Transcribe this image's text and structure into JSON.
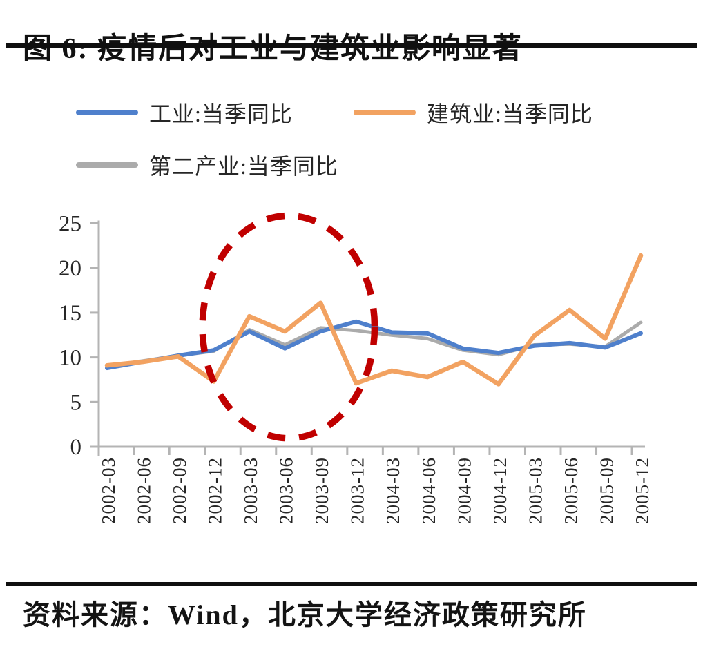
{
  "header": {
    "title": "图 6: 疫情后对工业与建筑业影响显著"
  },
  "legend": {
    "items": [
      {
        "label": "工业:当季同比"
      },
      {
        "label": "建筑业:当季同比"
      },
      {
        "label": "第二产业:当季同比"
      }
    ]
  },
  "footer": {
    "source": "资料来源：Wind，北京大学经济政策研究所"
  },
  "chart_data": {
    "type": "line",
    "title": "图 6: 疫情后对工业与建筑业影响显著",
    "xlabel": "",
    "ylabel": "",
    "ylim": [
      0,
      25
    ],
    "yticks": [
      0,
      5,
      10,
      15,
      20,
      25
    ],
    "grid": false,
    "legend_position": "top-left",
    "axis_color": "#b4b4b4",
    "tick_label_color": "#262626",
    "categories": [
      "2002-03",
      "2002-06",
      "2002-09",
      "2002-12",
      "2003-03",
      "2003-06",
      "2003-09",
      "2003-12",
      "2004-03",
      "2004-06",
      "2004-09",
      "2004-12",
      "2005-03",
      "2005-06",
      "2005-09",
      "2005-12"
    ],
    "series": [
      {
        "name": "工业:当季同比",
        "color": "#4f80cc",
        "values": [
          8.8,
          9.5,
          10.2,
          10.8,
          12.9,
          11.0,
          12.9,
          14.0,
          12.8,
          12.7,
          11.0,
          10.5,
          11.3,
          11.6,
          11.1,
          12.7
        ]
      },
      {
        "name": "建筑业:当季同比",
        "color": "#f2a261",
        "values": [
          9.1,
          9.5,
          10.1,
          7.3,
          14.6,
          12.9,
          16.1,
          7.1,
          8.5,
          7.8,
          9.5,
          7.0,
          12.4,
          15.3,
          12.1,
          21.4
        ]
      },
      {
        "name": "第二产业:当季同比",
        "color": "#ababab",
        "values": [
          9.0,
          9.6,
          10.2,
          10.7,
          13.1,
          11.4,
          13.3,
          13.0,
          12.5,
          12.1,
          10.8,
          10.3,
          11.4,
          11.5,
          11.2,
          13.9
        ]
      }
    ],
    "annotation": {
      "type": "dashed-ellipse-highlight",
      "color": "#c00000",
      "center_category_index": 5.1,
      "center_value": 13.4,
      "radius_categories": 2.42,
      "radius_value": 12.45
    }
  }
}
